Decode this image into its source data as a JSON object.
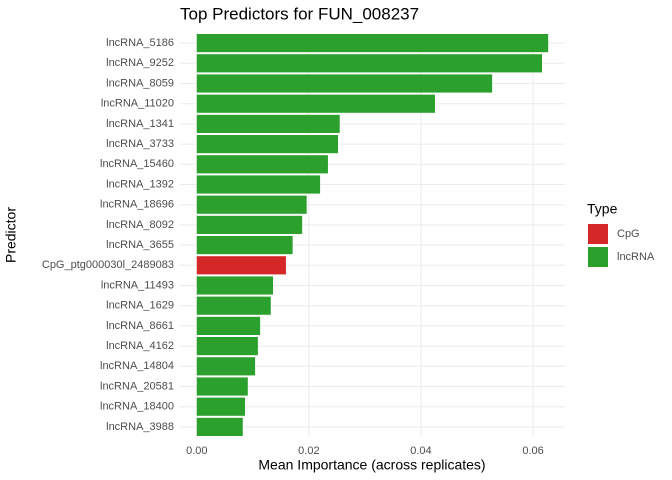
{
  "chart_data": {
    "type": "bar",
    "orientation": "horizontal",
    "title": "Top Predictors for FUN_008237",
    "x_label": "Mean Importance (across replicates)",
    "y_label": "Predictor",
    "legend_title": "Type",
    "categories": [
      "lncRNA_5186",
      "lncRNA_9252",
      "lncRNA_8059",
      "lncRNA_11020",
      "lncRNA_1341",
      "lncRNA_3733",
      "lncRNA_15460",
      "lncRNA_1392",
      "lncRNA_18696",
      "lncRNA_8092",
      "lncRNA_3655",
      "CpG_ptg000030l_2489083",
      "lncRNA_11493",
      "lncRNA_1629",
      "lncRNA_8661",
      "lncRNA_4162",
      "lncRNA_14804",
      "lncRNA_20581",
      "lncRNA_18400",
      "lncRNA_3988"
    ],
    "series": [
      {
        "name": "CpG",
        "color": "#d62728",
        "values": [
          null,
          null,
          null,
          null,
          null,
          null,
          null,
          null,
          null,
          null,
          null,
          0.0159,
          null,
          null,
          null,
          null,
          null,
          null,
          null,
          null
        ]
      },
      {
        "name": "lncRNA",
        "color": "#2ca02c",
        "values": [
          0.0627,
          0.0616,
          0.0527,
          0.0425,
          0.0255,
          0.0252,
          0.0234,
          0.022,
          0.0196,
          0.0188,
          0.0171,
          null,
          0.0136,
          0.0132,
          0.0113,
          0.0109,
          0.0104,
          0.0091,
          0.0086,
          0.0082
        ]
      }
    ],
    "xlim": [
      -0.003,
      0.0657
    ],
    "xticks": [
      {
        "value": 0,
        "label": "0.00"
      },
      0.02,
      0.04,
      0.06
    ],
    "grid": true
  }
}
